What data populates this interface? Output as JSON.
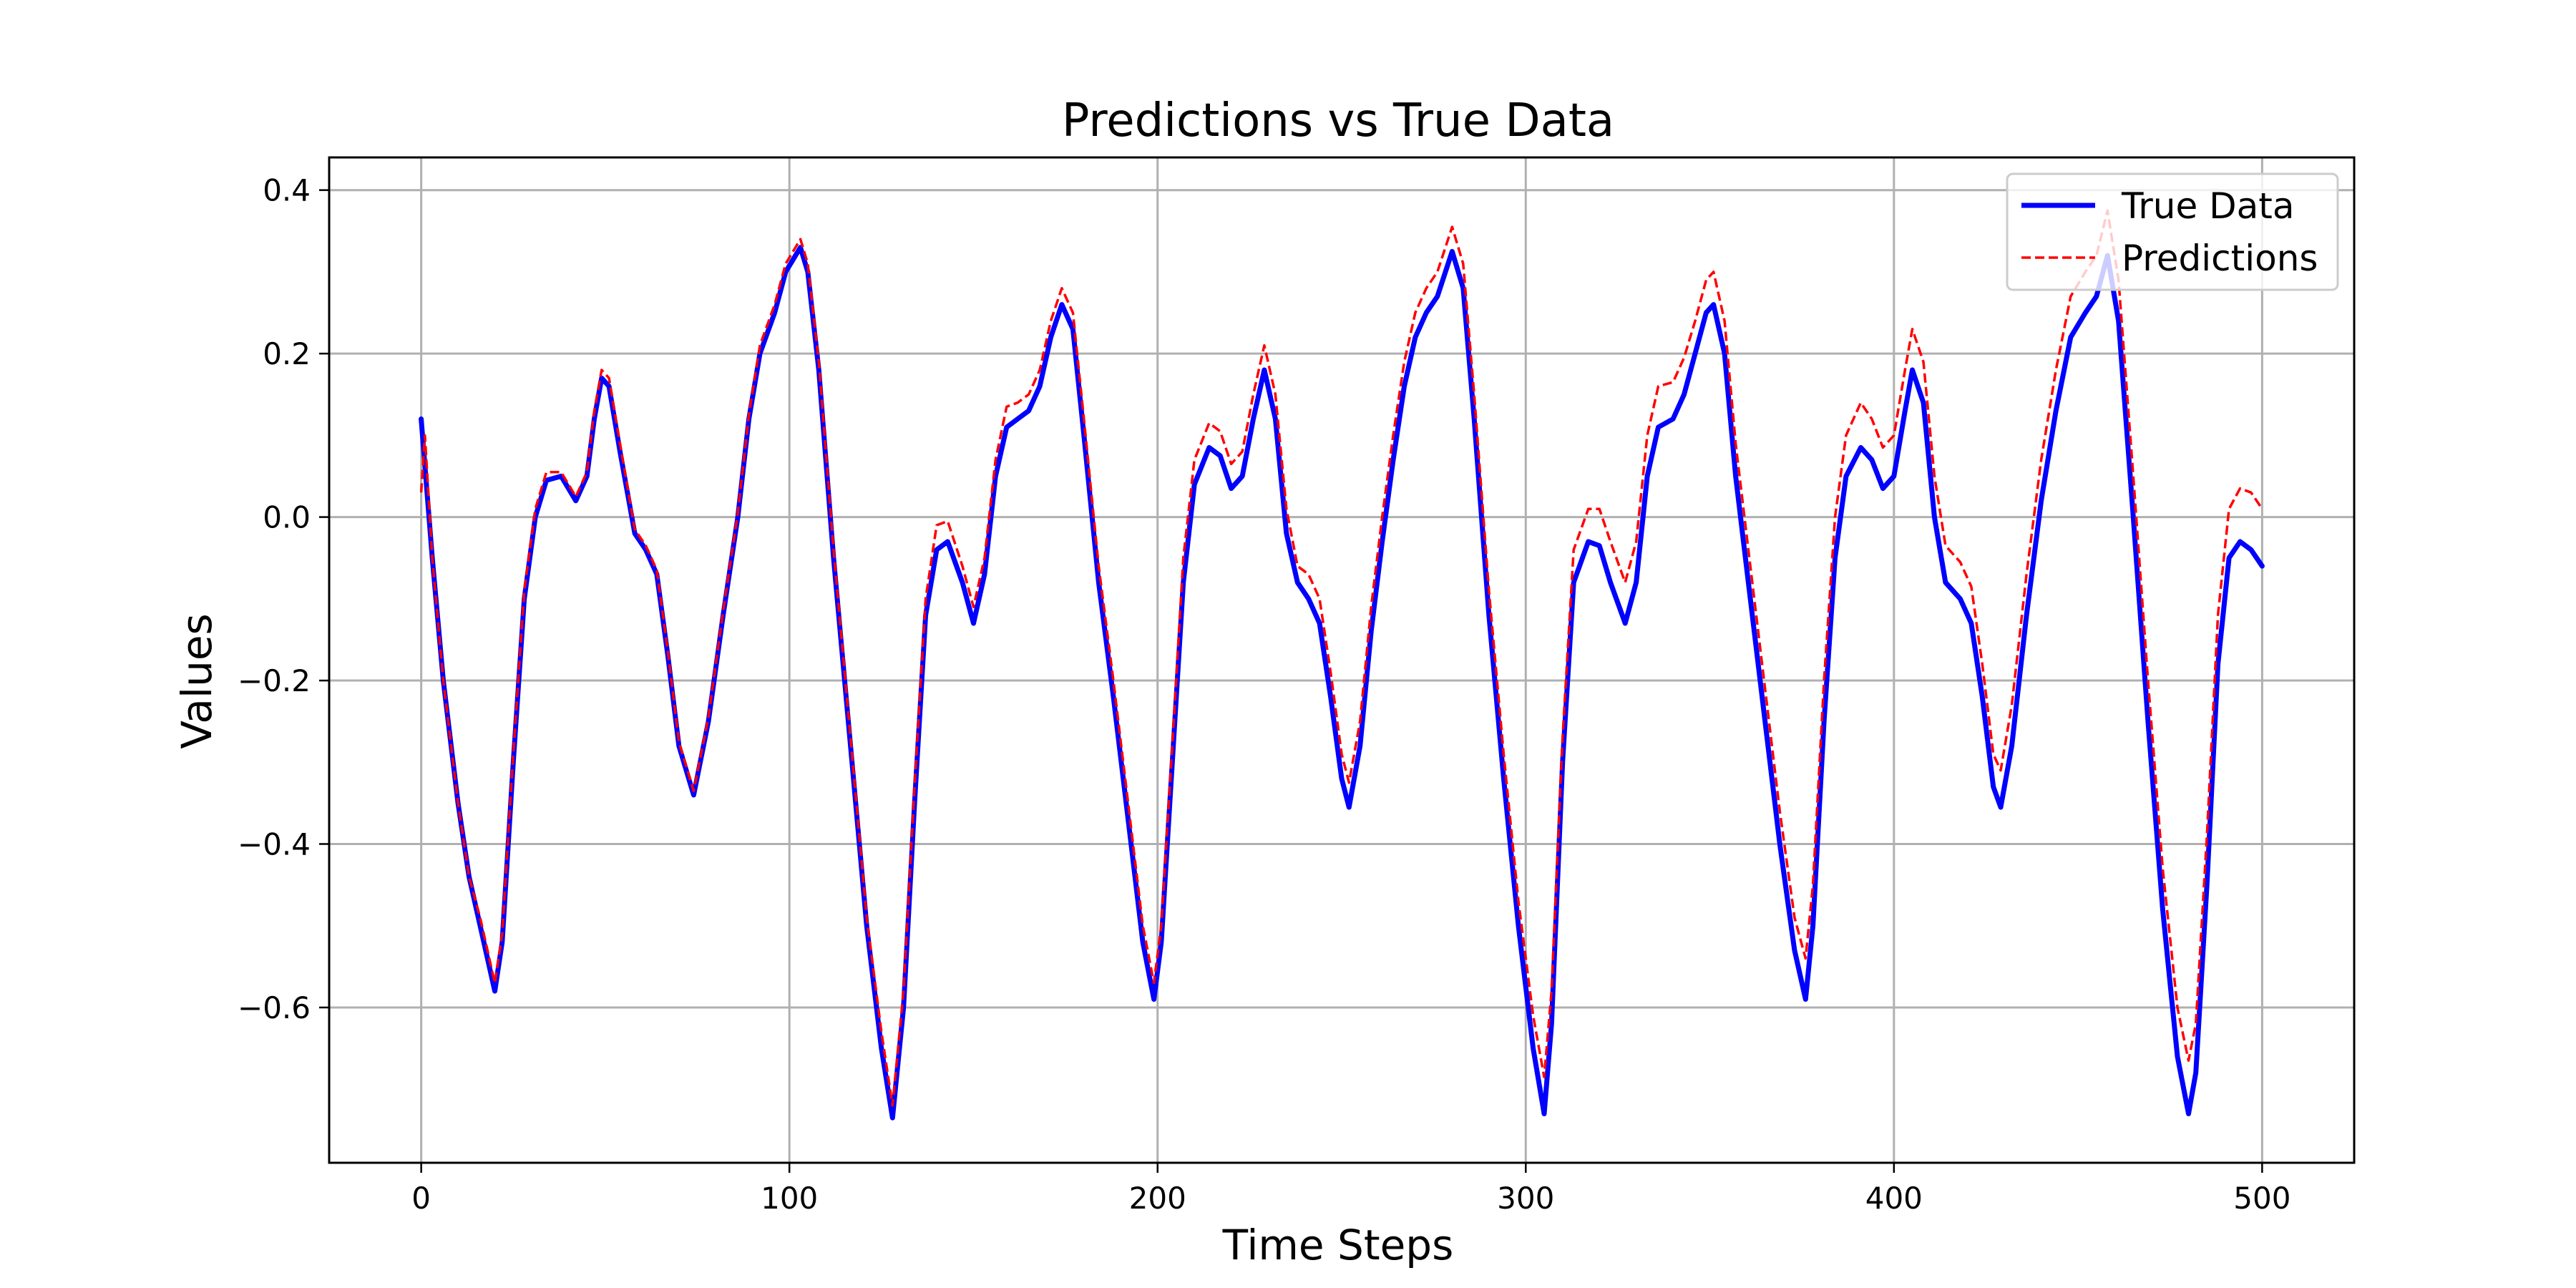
{
  "chart_data": {
    "type": "line",
    "title": "Predictions vs True Data",
    "xlabel": "Time Steps",
    "ylabel": "Values",
    "xlim": [
      -25,
      525
    ],
    "ylim": [
      -0.79,
      0.44
    ],
    "xticks": [
      0,
      100,
      200,
      300,
      400,
      500
    ],
    "xtick_labels": [
      "0",
      "100",
      "200",
      "300",
      "400",
      "500"
    ],
    "yticks": [
      -0.6,
      -0.4,
      -0.2,
      0.0,
      0.2,
      0.4
    ],
    "ytick_labels": [
      "−0.6",
      "−0.4",
      "−0.2",
      "0.0",
      "0.2",
      "0.4"
    ],
    "grid": true,
    "legend_position": "top-right",
    "series": [
      {
        "name": "True Data",
        "color": "#0000ff",
        "style": "solid",
        "points": [
          [
            0,
            0.12
          ],
          [
            3,
            -0.05
          ],
          [
            6,
            -0.2
          ],
          [
            10,
            -0.35
          ],
          [
            13,
            -0.44
          ],
          [
            16,
            -0.5
          ],
          [
            20,
            -0.58
          ],
          [
            22,
            -0.52
          ],
          [
            25,
            -0.3
          ],
          [
            28,
            -0.1
          ],
          [
            31,
            0.0
          ],
          [
            34,
            0.045
          ],
          [
            38,
            0.05
          ],
          [
            42,
            0.02
          ],
          [
            45,
            0.05
          ],
          [
            47,
            0.12
          ],
          [
            49,
            0.17
          ],
          [
            51,
            0.16
          ],
          [
            54,
            0.08
          ],
          [
            58,
            -0.02
          ],
          [
            61,
            -0.04
          ],
          [
            64,
            -0.07
          ],
          [
            67,
            -0.17
          ],
          [
            70,
            -0.28
          ],
          [
            74,
            -0.34
          ],
          [
            78,
            -0.25
          ],
          [
            82,
            -0.12
          ],
          [
            86,
            0.0
          ],
          [
            89,
            0.12
          ],
          [
            92,
            0.2
          ],
          [
            96,
            0.25
          ],
          [
            99,
            0.3
          ],
          [
            103,
            0.33
          ],
          [
            105,
            0.3
          ],
          [
            108,
            0.18
          ],
          [
            112,
            -0.05
          ],
          [
            117,
            -0.3
          ],
          [
            121,
            -0.5
          ],
          [
            125,
            -0.65
          ],
          [
            128,
            -0.735
          ],
          [
            131,
            -0.6
          ],
          [
            134,
            -0.35
          ],
          [
            137,
            -0.12
          ],
          [
            140,
            -0.04
          ],
          [
            143,
            -0.03
          ],
          [
            147,
            -0.08
          ],
          [
            150,
            -0.13
          ],
          [
            153,
            -0.07
          ],
          [
            156,
            0.05
          ],
          [
            159,
            0.11
          ],
          [
            162,
            0.12
          ],
          [
            165,
            0.13
          ],
          [
            168,
            0.16
          ],
          [
            171,
            0.22
          ],
          [
            174,
            0.26
          ],
          [
            177,
            0.23
          ],
          [
            180,
            0.1
          ],
          [
            184,
            -0.08
          ],
          [
            188,
            -0.22
          ],
          [
            192,
            -0.37
          ],
          [
            196,
            -0.52
          ],
          [
            199,
            -0.59
          ],
          [
            201,
            -0.52
          ],
          [
            204,
            -0.3
          ],
          [
            207,
            -0.08
          ],
          [
            210,
            0.04
          ],
          [
            214,
            0.085
          ],
          [
            217,
            0.075
          ],
          [
            220,
            0.035
          ],
          [
            223,
            0.05
          ],
          [
            226,
            0.12
          ],
          [
            229,
            0.18
          ],
          [
            232,
            0.12
          ],
          [
            235,
            -0.02
          ],
          [
            238,
            -0.08
          ],
          [
            241,
            -0.1
          ],
          [
            244,
            -0.13
          ],
          [
            247,
            -0.22
          ],
          [
            250,
            -0.32
          ],
          [
            252,
            -0.355
          ],
          [
            255,
            -0.28
          ],
          [
            258,
            -0.14
          ],
          [
            261,
            -0.03
          ],
          [
            264,
            0.07
          ],
          [
            267,
            0.16
          ],
          [
            270,
            0.22
          ],
          [
            273,
            0.25
          ],
          [
            276,
            0.27
          ],
          [
            280,
            0.325
          ],
          [
            283,
            0.28
          ],
          [
            286,
            0.12
          ],
          [
            290,
            -0.12
          ],
          [
            294,
            -0.32
          ],
          [
            298,
            -0.5
          ],
          [
            302,
            -0.65
          ],
          [
            305,
            -0.73
          ],
          [
            307,
            -0.62
          ],
          [
            310,
            -0.3
          ],
          [
            313,
            -0.08
          ],
          [
            317,
            -0.03
          ],
          [
            320,
            -0.035
          ],
          [
            323,
            -0.08
          ],
          [
            327,
            -0.13
          ],
          [
            330,
            -0.08
          ],
          [
            333,
            0.05
          ],
          [
            336,
            0.11
          ],
          [
            340,
            0.12
          ],
          [
            343,
            0.15
          ],
          [
            346,
            0.2
          ],
          [
            349,
            0.25
          ],
          [
            351,
            0.26
          ],
          [
            354,
            0.2
          ],
          [
            357,
            0.05
          ],
          [
            361,
            -0.1
          ],
          [
            365,
            -0.25
          ],
          [
            369,
            -0.4
          ],
          [
            373,
            -0.53
          ],
          [
            376,
            -0.59
          ],
          [
            378,
            -0.5
          ],
          [
            381,
            -0.25
          ],
          [
            384,
            -0.05
          ],
          [
            387,
            0.05
          ],
          [
            391,
            0.085
          ],
          [
            394,
            0.07
          ],
          [
            397,
            0.035
          ],
          [
            400,
            0.05
          ],
          [
            403,
            0.13
          ],
          [
            405,
            0.18
          ],
          [
            408,
            0.14
          ],
          [
            411,
            0.0
          ],
          [
            414,
            -0.08
          ],
          [
            418,
            -0.1
          ],
          [
            421,
            -0.13
          ],
          [
            424,
            -0.22
          ],
          [
            427,
            -0.33
          ],
          [
            429,
            -0.355
          ],
          [
            432,
            -0.28
          ],
          [
            436,
            -0.12
          ],
          [
            440,
            0.02
          ],
          [
            444,
            0.13
          ],
          [
            448,
            0.22
          ],
          [
            452,
            0.25
          ],
          [
            455,
            0.27
          ],
          [
            458,
            0.32
          ],
          [
            461,
            0.24
          ],
          [
            465,
            0.0
          ],
          [
            469,
            -0.25
          ],
          [
            473,
            -0.48
          ],
          [
            477,
            -0.66
          ],
          [
            480,
            -0.73
          ],
          [
            482,
            -0.68
          ],
          [
            485,
            -0.45
          ],
          [
            488,
            -0.18
          ],
          [
            491,
            -0.05
          ],
          [
            494,
            -0.03
          ],
          [
            497,
            -0.04
          ],
          [
            500,
            -0.06
          ]
        ]
      },
      {
        "name": "Predictions",
        "color": "#ff0000",
        "style": "dashed",
        "points": [
          [
            0,
            0.03
          ],
          [
            1,
            0.1
          ],
          [
            3,
            -0.05
          ],
          [
            6,
            -0.2
          ],
          [
            10,
            -0.35
          ],
          [
            13,
            -0.44
          ],
          [
            16,
            -0.49
          ],
          [
            20,
            -0.57
          ],
          [
            22,
            -0.51
          ],
          [
            25,
            -0.29
          ],
          [
            28,
            -0.09
          ],
          [
            31,
            0.01
          ],
          [
            34,
            0.055
          ],
          [
            38,
            0.055
          ],
          [
            42,
            0.025
          ],
          [
            45,
            0.055
          ],
          [
            47,
            0.13
          ],
          [
            49,
            0.18
          ],
          [
            51,
            0.17
          ],
          [
            54,
            0.09
          ],
          [
            58,
            -0.015
          ],
          [
            61,
            -0.035
          ],
          [
            64,
            -0.065
          ],
          [
            67,
            -0.165
          ],
          [
            70,
            -0.275
          ],
          [
            74,
            -0.335
          ],
          [
            78,
            -0.245
          ],
          [
            82,
            -0.115
          ],
          [
            86,
            0.005
          ],
          [
            89,
            0.125
          ],
          [
            92,
            0.21
          ],
          [
            96,
            0.26
          ],
          [
            99,
            0.31
          ],
          [
            103,
            0.34
          ],
          [
            105,
            0.31
          ],
          [
            108,
            0.19
          ],
          [
            112,
            -0.04
          ],
          [
            117,
            -0.29
          ],
          [
            121,
            -0.49
          ],
          [
            125,
            -0.63
          ],
          [
            128,
            -0.72
          ],
          [
            131,
            -0.58
          ],
          [
            134,
            -0.33
          ],
          [
            137,
            -0.1
          ],
          [
            140,
            -0.01
          ],
          [
            143,
            -0.005
          ],
          [
            147,
            -0.06
          ],
          [
            150,
            -0.11
          ],
          [
            153,
            -0.05
          ],
          [
            156,
            0.07
          ],
          [
            159,
            0.135
          ],
          [
            162,
            0.14
          ],
          [
            165,
            0.15
          ],
          [
            168,
            0.18
          ],
          [
            171,
            0.24
          ],
          [
            174,
            0.28
          ],
          [
            177,
            0.25
          ],
          [
            180,
            0.12
          ],
          [
            184,
            -0.06
          ],
          [
            188,
            -0.2
          ],
          [
            192,
            -0.35
          ],
          [
            196,
            -0.5
          ],
          [
            199,
            -0.57
          ],
          [
            201,
            -0.5
          ],
          [
            204,
            -0.28
          ],
          [
            207,
            -0.05
          ],
          [
            210,
            0.07
          ],
          [
            214,
            0.115
          ],
          [
            217,
            0.105
          ],
          [
            220,
            0.065
          ],
          [
            223,
            0.08
          ],
          [
            226,
            0.15
          ],
          [
            229,
            0.21
          ],
          [
            232,
            0.15
          ],
          [
            235,
            0.01
          ],
          [
            238,
            -0.06
          ],
          [
            241,
            -0.07
          ],
          [
            244,
            -0.1
          ],
          [
            247,
            -0.19
          ],
          [
            250,
            -0.29
          ],
          [
            252,
            -0.325
          ],
          [
            255,
            -0.25
          ],
          [
            258,
            -0.11
          ],
          [
            261,
            0.0
          ],
          [
            264,
            0.1
          ],
          [
            267,
            0.19
          ],
          [
            270,
            0.25
          ],
          [
            273,
            0.28
          ],
          [
            276,
            0.3
          ],
          [
            280,
            0.355
          ],
          [
            283,
            0.31
          ],
          [
            286,
            0.15
          ],
          [
            290,
            -0.09
          ],
          [
            294,
            -0.29
          ],
          [
            298,
            -0.47
          ],
          [
            302,
            -0.61
          ],
          [
            305,
            -0.685
          ],
          [
            307,
            -0.58
          ],
          [
            310,
            -0.27
          ],
          [
            313,
            -0.04
          ],
          [
            317,
            0.01
          ],
          [
            320,
            0.01
          ],
          [
            323,
            -0.03
          ],
          [
            327,
            -0.08
          ],
          [
            330,
            -0.03
          ],
          [
            333,
            0.1
          ],
          [
            336,
            0.16
          ],
          [
            340,
            0.165
          ],
          [
            343,
            0.195
          ],
          [
            346,
            0.24
          ],
          [
            349,
            0.29
          ],
          [
            351,
            0.3
          ],
          [
            354,
            0.24
          ],
          [
            357,
            0.09
          ],
          [
            361,
            -0.06
          ],
          [
            365,
            -0.21
          ],
          [
            369,
            -0.36
          ],
          [
            373,
            -0.49
          ],
          [
            376,
            -0.54
          ],
          [
            378,
            -0.45
          ],
          [
            381,
            -0.2
          ],
          [
            384,
            0.0
          ],
          [
            387,
            0.1
          ],
          [
            391,
            0.14
          ],
          [
            394,
            0.12
          ],
          [
            397,
            0.085
          ],
          [
            400,
            0.1
          ],
          [
            403,
            0.18
          ],
          [
            405,
            0.23
          ],
          [
            408,
            0.19
          ],
          [
            411,
            0.05
          ],
          [
            414,
            -0.035
          ],
          [
            418,
            -0.055
          ],
          [
            421,
            -0.085
          ],
          [
            424,
            -0.18
          ],
          [
            427,
            -0.29
          ],
          [
            429,
            -0.31
          ],
          [
            432,
            -0.23
          ],
          [
            436,
            -0.07
          ],
          [
            440,
            0.07
          ],
          [
            444,
            0.18
          ],
          [
            448,
            0.27
          ],
          [
            452,
            0.3
          ],
          [
            455,
            0.32
          ],
          [
            458,
            0.375
          ],
          [
            461,
            0.29
          ],
          [
            465,
            0.05
          ],
          [
            469,
            -0.2
          ],
          [
            473,
            -0.43
          ],
          [
            477,
            -0.6
          ],
          [
            480,
            -0.665
          ],
          [
            482,
            -0.62
          ],
          [
            485,
            -0.39
          ],
          [
            488,
            -0.12
          ],
          [
            491,
            0.01
          ],
          [
            494,
            0.035
          ],
          [
            497,
            0.03
          ],
          [
            500,
            0.01
          ]
        ]
      }
    ]
  }
}
